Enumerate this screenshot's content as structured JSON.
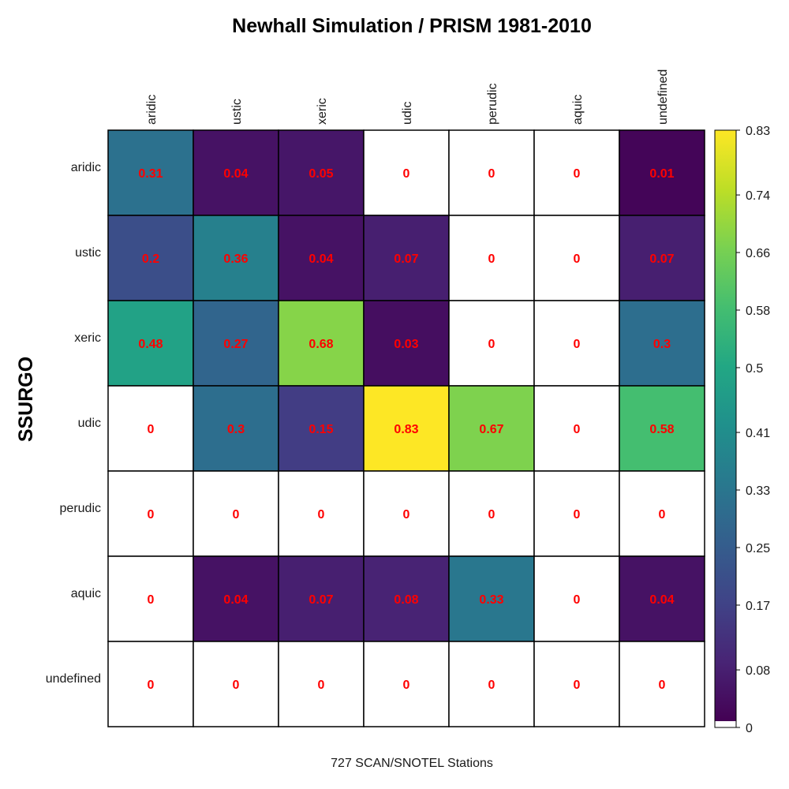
{
  "chart_data": {
    "type": "heatmap",
    "title": "Newhall Simulation / PRISM 1981-2010",
    "xlabel": "727 SCAN/SNOTEL Stations",
    "ylabel": "SSURGO",
    "x_categories": [
      "aridic",
      "ustic",
      "xeric",
      "udic",
      "perudic",
      "aquic",
      "undefined"
    ],
    "y_categories": [
      "aridic",
      "ustic",
      "xeric",
      "udic",
      "perudic",
      "aquic",
      "undefined"
    ],
    "values": [
      [
        0.31,
        0.04,
        0.05,
        0,
        0,
        0,
        0.01
      ],
      [
        0.2,
        0.36,
        0.04,
        0.07,
        0,
        0,
        0.07
      ],
      [
        0.48,
        0.27,
        0.68,
        0.03,
        0,
        0,
        0.3
      ],
      [
        0,
        0.3,
        0.15,
        0.83,
        0.67,
        0,
        0.58
      ],
      [
        0,
        0,
        0,
        0,
        0,
        0,
        0
      ],
      [
        0,
        0.04,
        0.07,
        0.08,
        0.33,
        0,
        0.04
      ],
      [
        0,
        0,
        0,
        0,
        0,
        0,
        0
      ]
    ],
    "labels": [
      [
        "0.31",
        "0.04",
        "0.05",
        "0",
        "0",
        "0",
        "0.01"
      ],
      [
        "0.2",
        "0.36",
        "0.04",
        "0.07",
        "0",
        "0",
        "0.07"
      ],
      [
        "0.48",
        "0.27",
        "0.68",
        "0.03",
        "0",
        "0",
        "0.3"
      ],
      [
        "0",
        "0.3",
        "0.15",
        "0.83",
        "0.67",
        "0",
        "0.58"
      ],
      [
        "0",
        "0",
        "0",
        "0",
        "0",
        "0",
        "0"
      ],
      [
        "0",
        "0.04",
        "0.07",
        "0.08",
        "0.33",
        "0",
        "0.04"
      ],
      [
        "0",
        "0",
        "0",
        "0",
        "0",
        "0",
        "0"
      ]
    ],
    "zero_color": "#ffffff",
    "label_color": "#ff0000",
    "colormap": "viridis",
    "colorbar": {
      "range": [
        0,
        0.83
      ],
      "ticks": [
        0,
        0.08,
        0.17,
        0.25,
        0.33,
        0.41,
        0.5,
        0.58,
        0.66,
        0.74,
        0.83
      ],
      "tick_labels": [
        "0",
        "0.08",
        "0.17",
        "0.25",
        "0.33",
        "0.41",
        " 0.5",
        "0.58",
        "0.66",
        "0.74",
        "0.83"
      ],
      "zero_band_color": "#ffffff"
    },
    "x_axis_position": "top",
    "colorbar_placement": "right"
  }
}
